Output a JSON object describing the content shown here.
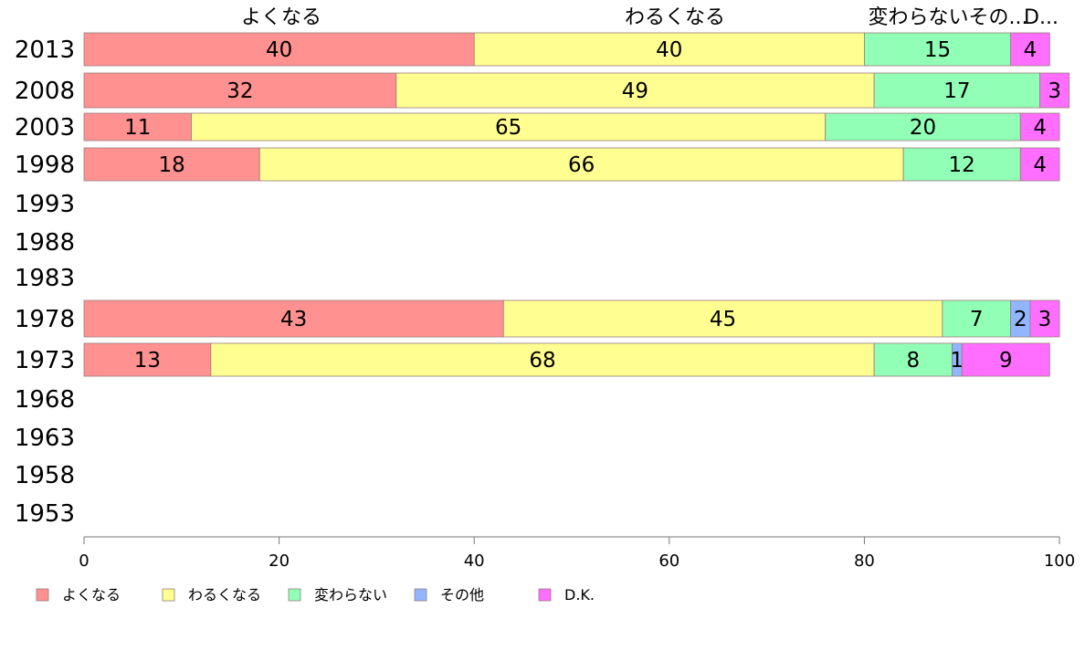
{
  "chart_data": {
    "type": "bar",
    "orientation": "horizontal",
    "stacked": true,
    "categories": [
      "2013",
      "2008",
      "2003",
      "1998",
      "1993",
      "1988",
      "1983",
      "1978",
      "1973",
      "1968",
      "1963",
      "1958",
      "1953"
    ],
    "series": [
      {
        "name": "よくなる",
        "color": "#ff9191",
        "values": [
          40,
          32,
          11,
          18,
          null,
          null,
          null,
          43,
          13,
          null,
          null,
          null,
          null
        ]
      },
      {
        "name": "わるくなる",
        "color": "#ffff91",
        "values": [
          40,
          49,
          65,
          66,
          null,
          null,
          null,
          45,
          68,
          null,
          null,
          null,
          null
        ]
      },
      {
        "name": "変わらない",
        "color": "#91ffb6",
        "values": [
          15,
          17,
          20,
          12,
          null,
          null,
          null,
          7,
          8,
          null,
          null,
          null,
          null
        ]
      },
      {
        "name": "その他",
        "color": "#91b6ff",
        "values": [
          0,
          0,
          0,
          0,
          null,
          null,
          null,
          2,
          1,
          null,
          null,
          null,
          null
        ]
      },
      {
        "name": "D.K.",
        "color": "#ff6eff",
        "values": [
          4,
          3,
          4,
          4,
          null,
          null,
          null,
          3,
          9,
          null,
          null,
          null,
          null
        ]
      }
    ],
    "top_labels": [
      "よくなる",
      "わるくなる",
      "変わらないその...",
      "D..."
    ],
    "xlim": [
      0,
      100
    ],
    "xticks": [
      "0",
      "20",
      "40",
      "60",
      "80",
      "100"
    ],
    "grid": false,
    "legend_position": "bottom"
  }
}
